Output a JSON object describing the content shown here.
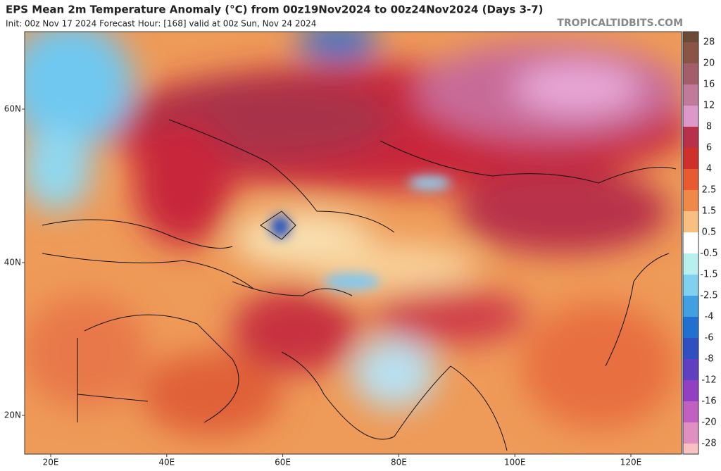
{
  "header": {
    "title": "EPS Mean 2m Temperature Anomaly (°C) from 00z19Nov2024 to 00z24Nov2024 (Days 3-7)",
    "subtitle": "Init: 00z Nov 17 2024   Forecast Hour: [168]   valid at 00z Sun, Nov 24 2024",
    "watermark": "TROPICALTIDBITS.COM"
  },
  "map": {
    "lat_labels": [
      "60N",
      "40N",
      "20N"
    ],
    "lon_labels": [
      "20E",
      "40E",
      "60E",
      "80E",
      "100E",
      "120E"
    ]
  },
  "colorbar": {
    "labels": [
      "28",
      "20",
      "16",
      "12",
      "8",
      "6",
      "4",
      "2.5",
      "1.5",
      "0.5",
      "-0.5",
      "-1.5",
      "-2.5",
      "-4",
      "-6",
      "-8",
      "-12",
      "-16",
      "-20",
      "-28"
    ],
    "colors": [
      "#6b4a38",
      "#8a5446",
      "#a25e6a",
      "#c07a9a",
      "#dc98c8",
      "#b8304a",
      "#d0302a",
      "#e85a30",
      "#f08848",
      "#f8c080",
      "#ffffff",
      "#b8f0f0",
      "#80d0f0",
      "#40a0e0",
      "#2070d0",
      "#3050c0",
      "#6040c0",
      "#9040c0",
      "#c060c0",
      "#e090c0",
      "#f8c0c0"
    ]
  }
}
